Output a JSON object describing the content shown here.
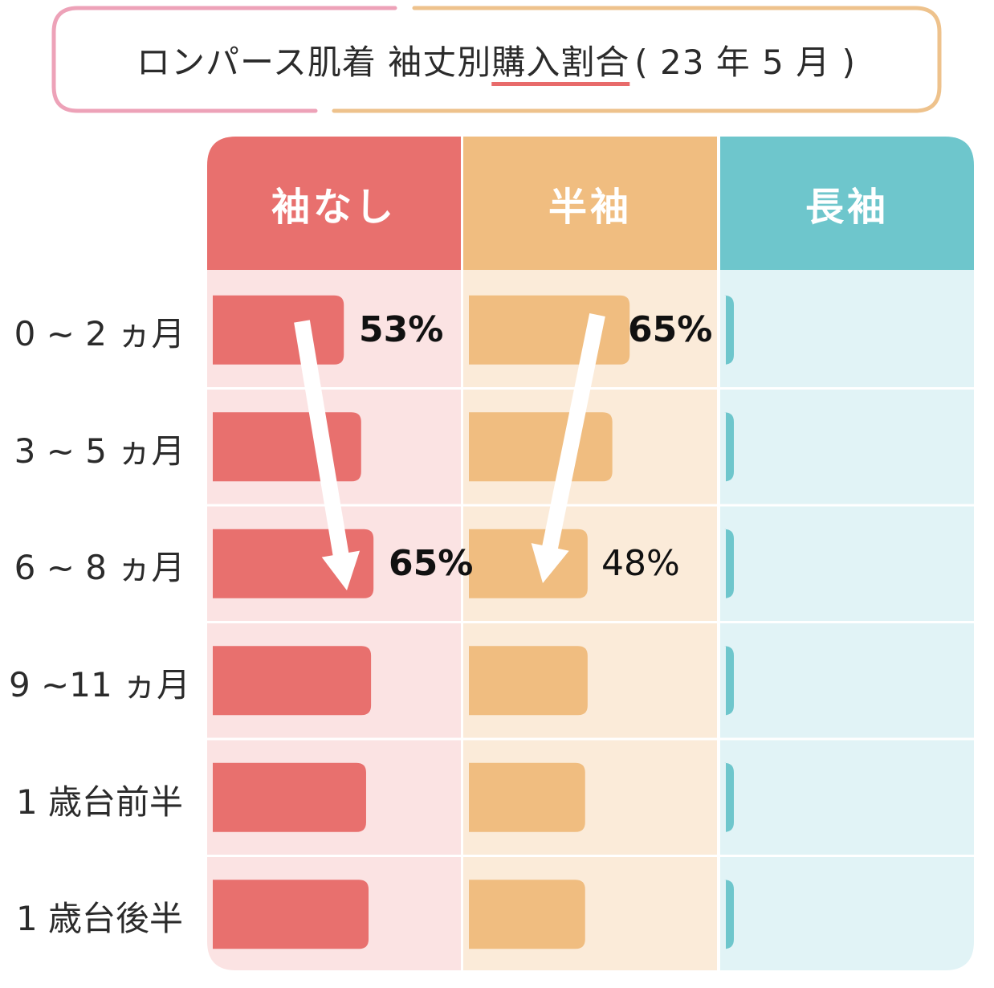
{
  "title": {
    "prefix": "ロンパース肌着 袖丈別 ",
    "highlight": "購入割合",
    "suffix": "( 23 年 5 月 )"
  },
  "colors": {
    "sleeveless": "#e8706e",
    "short": "#f0bd80",
    "long": "#6ec6cc",
    "sleeveless_bg": "#fbe3e3",
    "short_bg": "#fbebd9",
    "long_bg": "#e1f3f6",
    "title_pink": "#eda2b8",
    "title_orange": "#eec28c"
  },
  "chart_data": {
    "type": "bar",
    "title": "ロンパース肌着 袖丈別 購入割合 ( 23 年 5 月 )",
    "categories": [
      "0 ~ 2 ヵ月",
      "3 ~ 5 ヵ月",
      "6 ~ 8 ヵ月",
      "9 ~11 ヵ月",
      "1 歳台前半",
      "1 歳台後半"
    ],
    "series": [
      {
        "name": "袖なし",
        "values": [
          53,
          60,
          65,
          64,
          62,
          63
        ]
      },
      {
        "name": "半袖",
        "values": [
          65,
          58,
          48,
          48,
          47,
          47
        ]
      },
      {
        "name": "長袖",
        "values": [
          2,
          3,
          2,
          2,
          2,
          1
        ]
      }
    ],
    "data_labels": [
      {
        "series": 0,
        "index": 0,
        "text": "53%"
      },
      {
        "series": 0,
        "index": 2,
        "text": "65%"
      },
      {
        "series": 1,
        "index": 0,
        "text": "65%"
      },
      {
        "series": 1,
        "index": 2,
        "text": "48%"
      }
    ],
    "ylim": [
      0,
      100
    ],
    "annotations": [
      "arrow-down-sleeveless",
      "arrow-down-short"
    ]
  }
}
